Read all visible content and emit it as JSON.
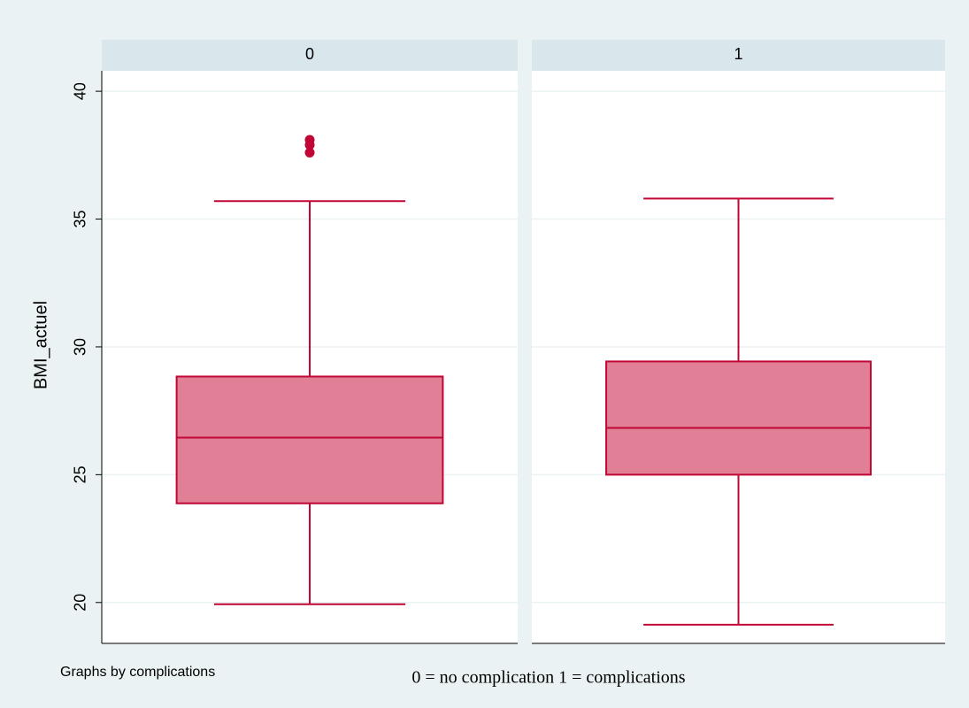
{
  "chart_data": {
    "type": "box",
    "y_label": "BMI_actuel",
    "panels": [
      "0",
      "1"
    ],
    "ylim": [
      18.4,
      40.8
    ],
    "yticks": [
      20,
      25,
      30,
      35,
      40
    ],
    "grid": true,
    "color": "#e07f96",
    "line_color": "#c10534",
    "boxes": [
      {
        "whisker_low": 19.93,
        "q1": 23.88,
        "median": 26.45,
        "q3": 28.84,
        "whisker_high": 35.7,
        "outliers": [
          38.1,
          37.9,
          37.6
        ]
      },
      {
        "whisker_low": 19.13,
        "q1": 25.0,
        "median": 26.83,
        "q3": 29.43,
        "whisker_high": 35.8,
        "outliers": []
      }
    ],
    "note": "Graphs by complications",
    "annotation": "0 = no complication  1 = complications"
  }
}
